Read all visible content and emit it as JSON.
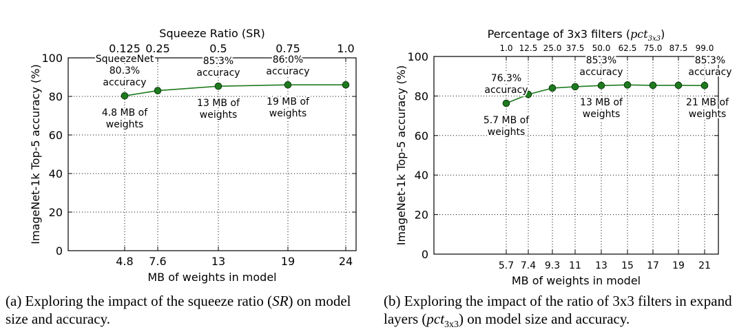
{
  "chart_data": [
    {
      "type": "line",
      "top_axis_label": "Squeeze Ratio (SR)",
      "top_ticks": [
        {
          "label": "0.125",
          "x": 4.8
        },
        {
          "label": "0.25",
          "x": 7.6
        },
        {
          "label": "0.5",
          "x": 13
        },
        {
          "label": "0.75",
          "x": 19
        },
        {
          "label": "1.0",
          "x": 24
        }
      ],
      "xlabel": "MB of weights in model",
      "ylabel": "ImageNet-1k Top-5 accuracy (%)",
      "xticks": [
        "4.8",
        "7.6",
        "13",
        "19",
        "24"
      ],
      "yticks": [
        "0",
        "20",
        "40",
        "60",
        "80",
        "100"
      ],
      "ylim": [
        0,
        100
      ],
      "grid": true,
      "series_color": "#1e7a1e",
      "x": [
        4.8,
        7.6,
        13,
        19,
        24
      ],
      "values": [
        80.3,
        83.0,
        85.3,
        86.0,
        86.0
      ],
      "annotations_above": [
        {
          "lines": [
            "SqueezeNet",
            "80.3%",
            "accuracy"
          ],
          "x": 4.8
        },
        {
          "lines": [
            "85.3%",
            "accuracy"
          ],
          "x": 13
        },
        {
          "lines": [
            "86.0%",
            "accuracy"
          ],
          "x": 19
        }
      ],
      "annotations_below": [
        {
          "lines": [
            "4.8 MB of",
            "weights"
          ],
          "x": 4.8
        },
        {
          "lines": [
            "13 MB of",
            "weights"
          ],
          "x": 13
        },
        {
          "lines": [
            "19 MB of",
            "weights"
          ],
          "x": 19
        }
      ]
    },
    {
      "type": "line",
      "top_axis_label": "Percentage of 3x3 filters (",
      "top_axis_math": "pct",
      "top_axis_sub": "3x3",
      "top_axis_close": ")",
      "top_ticks": [
        {
          "label": "1.0",
          "x": 5.7
        },
        {
          "label": "12.5",
          "x": 7.4
        },
        {
          "label": "25.0",
          "x": 9.3
        },
        {
          "label": "37.5",
          "x": 11
        },
        {
          "label": "50.0",
          "x": 13
        },
        {
          "label": "62.5",
          "x": 15
        },
        {
          "label": "75.0",
          "x": 17
        },
        {
          "label": "87.5",
          "x": 19
        },
        {
          "label": "99.0",
          "x": 21
        }
      ],
      "xlabel": "MB of weights in model",
      "ylabel": "ImageNet-1k Top-5 accuracy (%)",
      "xticks": [
        "5.7",
        "7.4",
        "9.3",
        "11",
        "13",
        "15",
        "17",
        "19",
        "21"
      ],
      "yticks": [
        "0",
        "20",
        "40",
        "60",
        "80",
        "100"
      ],
      "ylim": [
        0,
        100
      ],
      "grid": true,
      "series_color": "#1e7a1e",
      "x": [
        5.7,
        7.4,
        9.3,
        11,
        13,
        15,
        17,
        19,
        21
      ],
      "values": [
        76.3,
        80.8,
        84.0,
        84.7,
        85.3,
        85.6,
        85.4,
        85.4,
        85.3
      ],
      "annotations_above": [
        {
          "lines": [
            "76.3%",
            "accuracy"
          ],
          "x": 5.7
        },
        {
          "lines": [
            "85.3%",
            "accuracy"
          ],
          "x": 13
        },
        {
          "lines": [
            "85.3%",
            "accuracy"
          ],
          "x": 21
        }
      ],
      "annotations_below": [
        {
          "lines": [
            "5.7 MB of",
            "weights"
          ],
          "x": 5.7
        },
        {
          "lines": [
            "13 MB of",
            "weights"
          ],
          "x": 13
        },
        {
          "lines": [
            "21 MB of",
            "weights"
          ],
          "x": 21
        }
      ]
    }
  ],
  "captions": {
    "a_prefix": "(a) Exploring the impact of the squeeze ratio (",
    "a_math": "SR",
    "a_suffix": ") on model size and accuracy.",
    "b_prefix": "(b) Exploring the impact of the ratio of 3x3 filters in expand layers (",
    "b_math": "pct",
    "b_sub": "3x3",
    "b_suffix": ") on model size and accuracy."
  }
}
